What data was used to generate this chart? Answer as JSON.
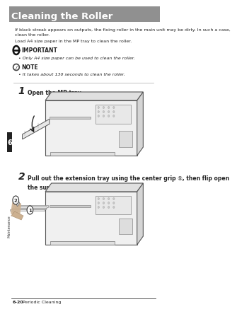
{
  "bg_color": "#ffffff",
  "header_bg": "#909090",
  "header_text": "Cleaning the Roller",
  "header_text_color": "#ffffff",
  "header_font_size": 9.5,
  "body_text1": "If black streak appears on outputs, the fixing roller in the main unit may be dirty. In such a case,\nclean the roller.",
  "body_text2": "Load A4 size paper in the MP tray to clean the roller.",
  "important_label": "IMPORTANT",
  "important_bullet": "• Only A4 size paper can be used to clean the roller.",
  "note_label": "NOTE",
  "note_bullet": "• It takes about 130 seconds to clean the roller.",
  "step1_num": "1",
  "step1_text": "Open the MP tray.",
  "step2_num": "2",
  "step2_text": "Pull out the extension tray using the center grip ①, then flip open\nthe support tray ②.",
  "footer_left": "6-20",
  "footer_right": "Periodic Cleaning",
  "sidebar_text": "Maintenance",
  "sidebar_num": "6",
  "text_color": "#222222",
  "small_font": 4.5,
  "body_font": 4.5,
  "label_font": 5.5,
  "step_num_font": 10,
  "step_text_font": 5.5,
  "footer_font": 4.5,
  "sidebar_bg": "#222222",
  "sidebar_text_color": "#ffffff"
}
